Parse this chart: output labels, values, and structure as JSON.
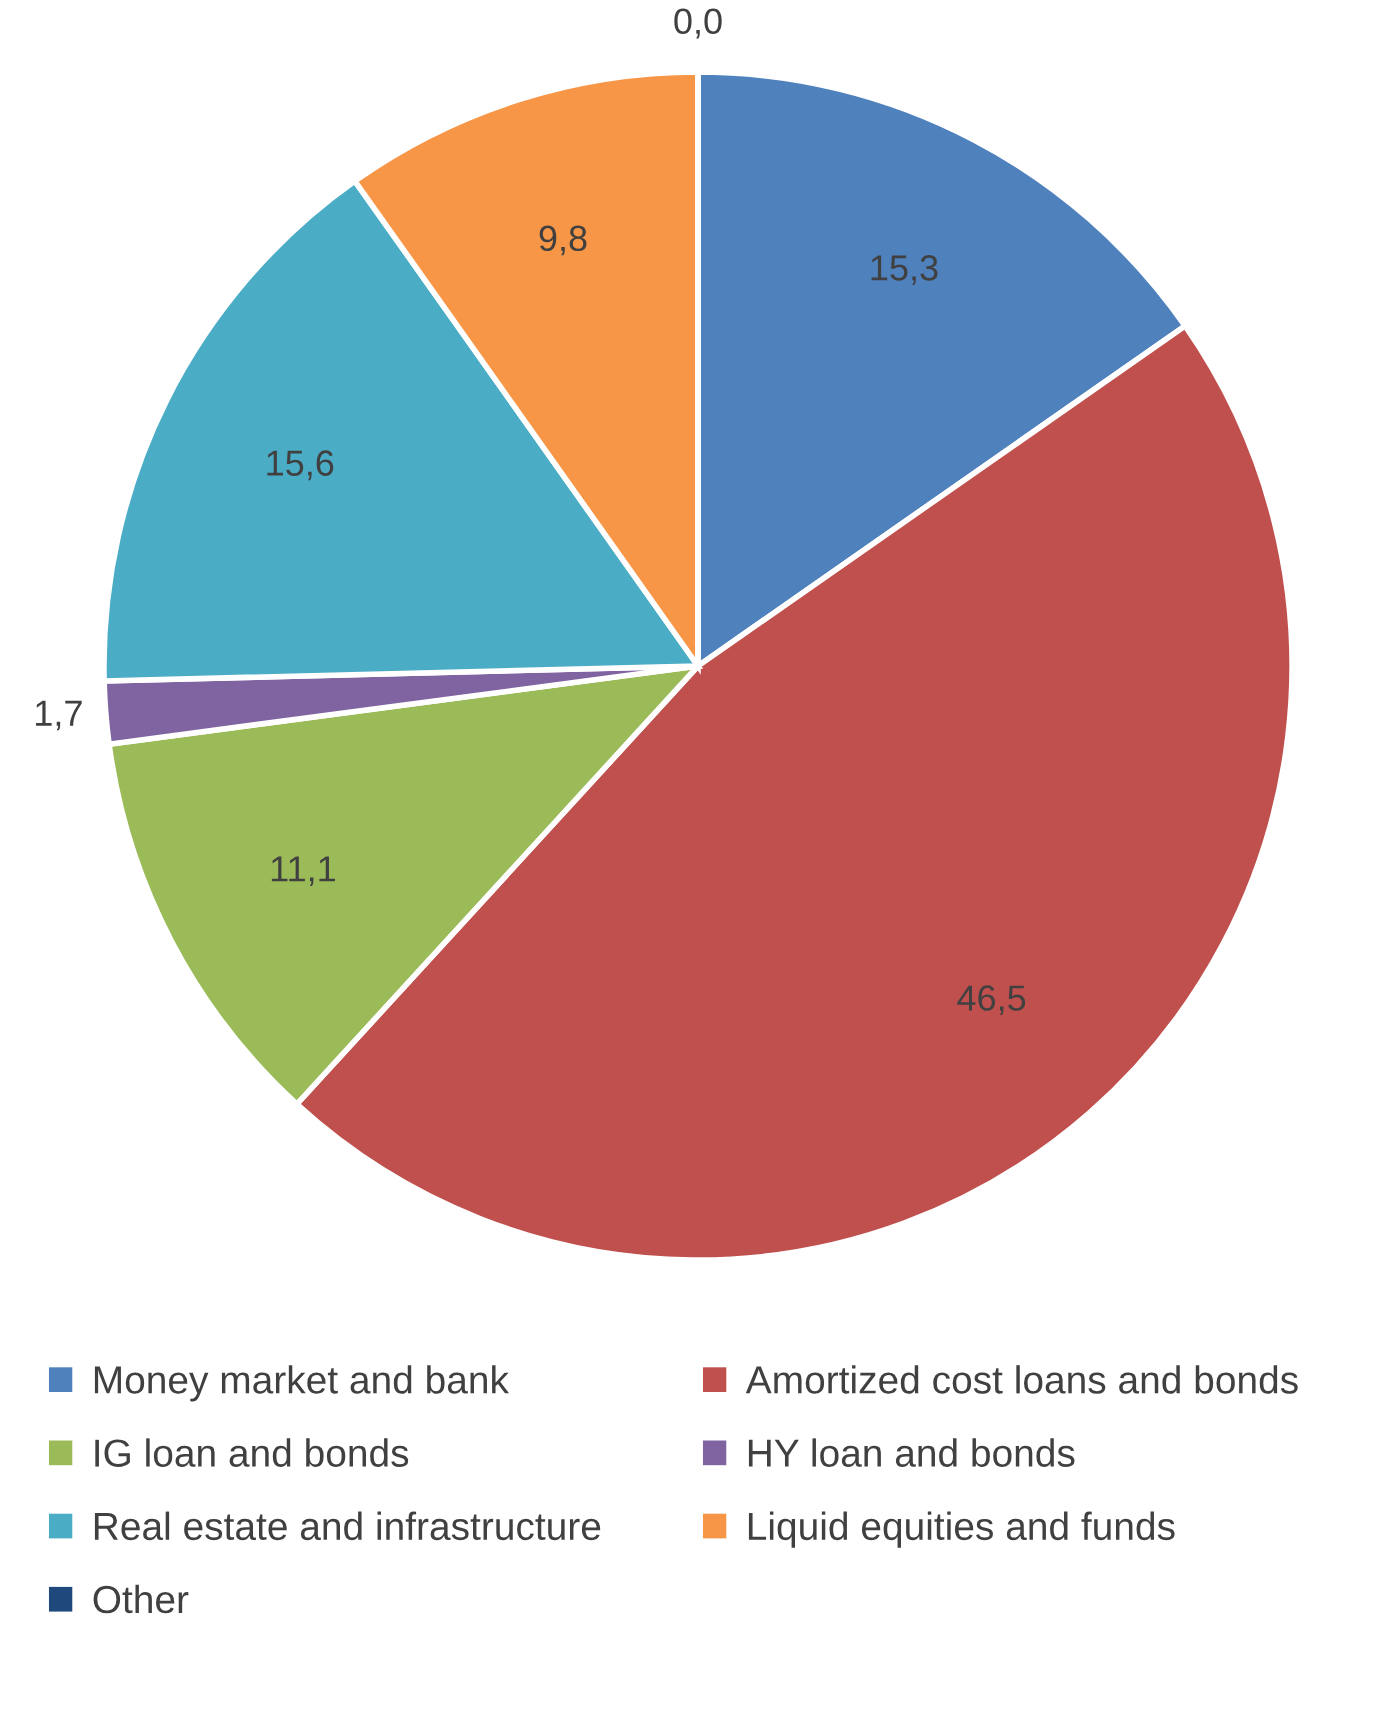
{
  "chart_data": {
    "type": "pie",
    "categories": [
      "Money market and bank",
      "Amortized cost loans and bonds",
      "IG loan and bonds",
      "HY loan and bonds",
      "Real estate and infrastructure",
      "Liquid equities and funds",
      "Other"
    ],
    "values": [
      15.3,
      46.5,
      11.1,
      1.7,
      15.6,
      9.8,
      0.0
    ],
    "colors": [
      "#4f81bd",
      "#c0504d",
      "#9bbb59",
      "#8064a2",
      "#4bacc6",
      "#f79646",
      "#1f497d"
    ],
    "value_labels": [
      "15,3",
      "46,5",
      "11,1",
      "1,7",
      "15,6",
      "9,8",
      "0,0"
    ],
    "legend": "bottom"
  }
}
